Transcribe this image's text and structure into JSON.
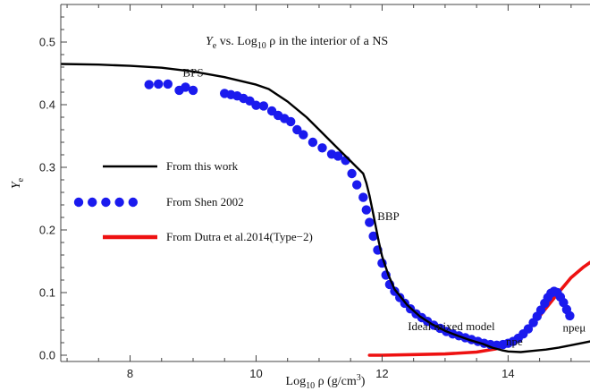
{
  "chart_data": {
    "type": "line",
    "title_parts": [
      "Y",
      "e",
      " vs. Log",
      "10",
      " ρ in the interior  of a NS"
    ],
    "xlabel_parts": [
      "Log",
      "10",
      " ρ (g/cm",
      "3",
      ")"
    ],
    "ylabel_parts": [
      "Y",
      "e"
    ],
    "xlim": [
      6.9,
      15.3
    ],
    "ylim": [
      -0.01,
      0.56
    ],
    "xticks": [
      8,
      10,
      12,
      14
    ],
    "yticks": [
      0.0,
      0.1,
      0.2,
      0.3,
      0.4,
      0.5
    ],
    "ytick_labels": [
      "0.0",
      "0.1",
      "0.2",
      "0.3",
      "0.4",
      "0.5"
    ],
    "grid": false,
    "legend_position": "left",
    "legend": [
      {
        "label": "From this work",
        "style": "line",
        "color": "#000000"
      },
      {
        "label": "From Shen 2002",
        "style": "dots",
        "color": "#1a1aee"
      },
      {
        "label": "From Dutra et al.2014(Type−2)",
        "style": "line",
        "color": "#ee1111"
      }
    ],
    "series": [
      {
        "style": "line",
        "color": "#000000",
        "x": [
          6.9,
          7.5,
          8.0,
          8.5,
          9.0,
          9.5,
          10.0,
          10.2,
          10.5,
          10.8,
          11.0,
          11.2,
          11.4,
          11.5,
          11.6,
          11.7,
          11.75,
          11.8,
          11.85,
          11.9,
          11.95,
          12.0,
          12.1,
          12.2,
          12.4,
          12.6,
          12.8,
          13.0,
          13.2,
          13.4,
          13.6,
          13.75,
          13.9,
          14.0,
          14.2,
          14.4,
          14.6,
          14.8,
          15.0,
          15.3
        ],
        "y": [
          0.465,
          0.464,
          0.462,
          0.459,
          0.453,
          0.444,
          0.432,
          0.425,
          0.405,
          0.38,
          0.36,
          0.34,
          0.32,
          0.31,
          0.3,
          0.29,
          0.275,
          0.255,
          0.23,
          0.205,
          0.18,
          0.158,
          0.128,
          0.105,
          0.08,
          0.062,
          0.049,
          0.039,
          0.031,
          0.024,
          0.018,
          0.012,
          0.008,
          0.006,
          0.005,
          0.007,
          0.009,
          0.012,
          0.016,
          0.022
        ]
      },
      {
        "style": "dots",
        "color": "#1a1aee",
        "x": [
          8.3,
          8.45,
          8.6,
          8.78,
          8.88,
          9.0,
          9.5,
          9.6,
          9.7,
          9.8,
          9.9,
          10.0,
          10.12,
          10.25,
          10.35,
          10.45,
          10.55,
          10.65,
          10.75,
          10.9,
          11.05,
          11.2,
          11.3,
          11.42,
          11.52,
          11.6,
          11.7,
          11.75,
          11.8,
          11.86,
          11.93,
          12.0,
          12.06,
          12.12,
          12.2,
          12.28,
          12.36,
          12.45,
          12.54,
          12.63,
          12.72,
          12.82,
          12.92,
          13.02,
          13.12,
          13.22,
          13.32,
          13.42,
          13.52,
          13.62,
          13.72,
          13.82,
          13.92,
          14.0,
          14.08,
          14.16,
          14.24,
          14.32,
          14.4,
          14.46,
          14.52,
          14.58,
          14.63,
          14.68,
          14.73,
          14.78,
          14.83,
          14.88,
          14.93,
          14.98
        ],
        "y": [
          0.432,
          0.433,
          0.433,
          0.423,
          0.428,
          0.423,
          0.418,
          0.416,
          0.414,
          0.41,
          0.406,
          0.399,
          0.398,
          0.39,
          0.383,
          0.378,
          0.373,
          0.36,
          0.352,
          0.34,
          0.331,
          0.321,
          0.318,
          0.311,
          0.29,
          0.272,
          0.252,
          0.232,
          0.212,
          0.19,
          0.168,
          0.147,
          0.128,
          0.113,
          0.102,
          0.092,
          0.083,
          0.074,
          0.066,
          0.06,
          0.054,
          0.048,
          0.043,
          0.038,
          0.034,
          0.031,
          0.028,
          0.025,
          0.022,
          0.019,
          0.017,
          0.016,
          0.017,
          0.019,
          0.022,
          0.027,
          0.034,
          0.042,
          0.052,
          0.062,
          0.072,
          0.083,
          0.092,
          0.099,
          0.102,
          0.1,
          0.093,
          0.084,
          0.073,
          0.063
        ]
      },
      {
        "style": "line",
        "color": "#ee1111",
        "x": [
          11.8,
          12.0,
          12.5,
          13.0,
          13.5,
          13.8,
          14.0,
          14.2,
          14.4,
          14.6,
          14.8,
          15.0,
          15.2,
          15.3
        ],
        "y": [
          0.0,
          0.0,
          0.001,
          0.002,
          0.005,
          0.01,
          0.017,
          0.03,
          0.05,
          0.075,
          0.1,
          0.124,
          0.141,
          0.148
        ]
      }
    ],
    "annotations": [
      {
        "text": "BPS",
        "x": 9.0,
        "y": 0.445
      },
      {
        "text": "BBP",
        "x": 12.1,
        "y": 0.216
      },
      {
        "text": "Ideal mixed model",
        "x": 13.1,
        "y": 0.04
      },
      {
        "text": "npe",
        "x": 14.1,
        "y": 0.016
      },
      {
        "text": "npeμ",
        "x": 15.05,
        "y": 0.038
      }
    ]
  }
}
